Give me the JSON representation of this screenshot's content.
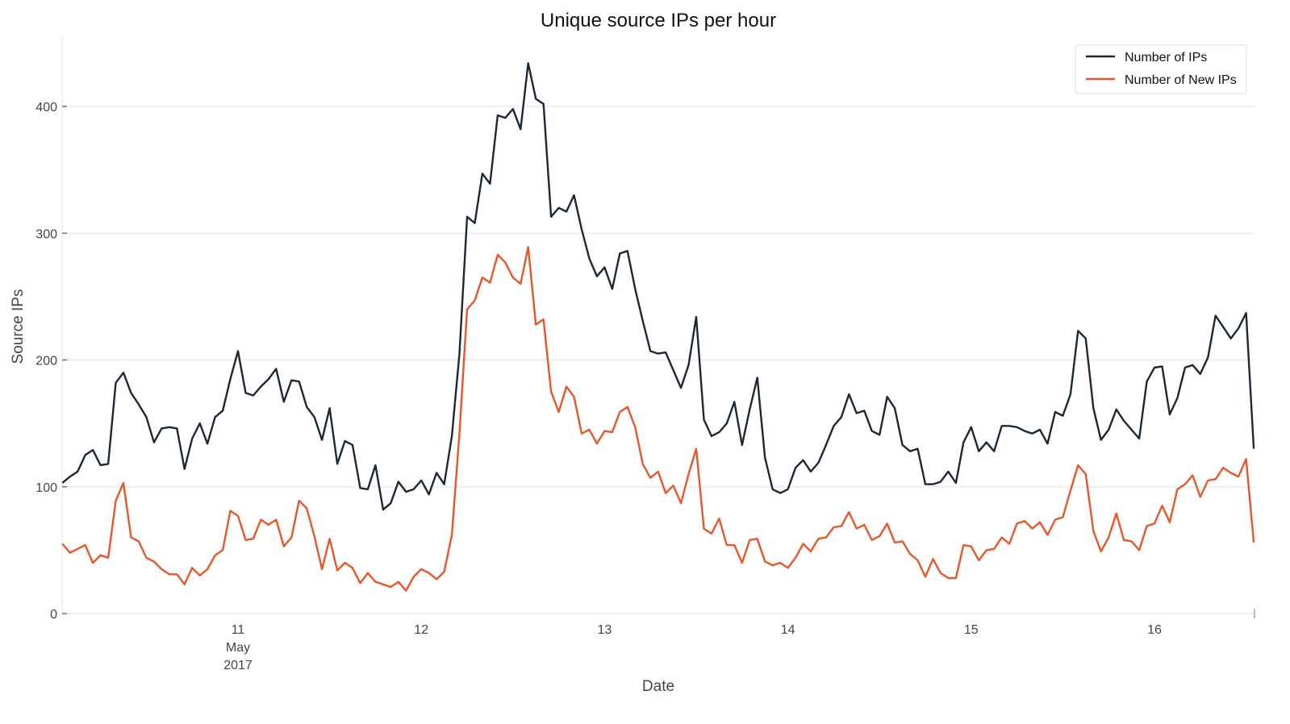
{
  "chart_data": {
    "type": "line",
    "title": "Unique source IPs per hour",
    "xlabel": "Date",
    "ylabel": "Source IPs",
    "ylim": [
      0,
      455
    ],
    "yticks": [
      0,
      100,
      200,
      300,
      400
    ],
    "xticks": [
      {
        "label": "11",
        "sub": [
          "May",
          "2017"
        ],
        "day": 11
      },
      {
        "label": "12",
        "sub": [],
        "day": 12
      },
      {
        "label": "13",
        "sub": [],
        "day": 13
      },
      {
        "label": "14",
        "sub": [],
        "day": 14
      },
      {
        "label": "15",
        "sub": [],
        "day": 15
      },
      {
        "label": "16",
        "sub": [],
        "day": 16
      }
    ],
    "x_start": "2017-05-10 01:00",
    "x_step": "1 hour",
    "grid": true,
    "legend_position": "upper right",
    "series": [
      {
        "name": "Number of IPs",
        "color": "#1c2833",
        "values": [
          103,
          108,
          112,
          125,
          129,
          117,
          118,
          182,
          190,
          174,
          165,
          155,
          135,
          146,
          147,
          146,
          114,
          138,
          150,
          134,
          155,
          160,
          185,
          207,
          174,
          172,
          179,
          185,
          193,
          167,
          184,
          183,
          163,
          155,
          137,
          162,
          118,
          136,
          133,
          99,
          98,
          117,
          82,
          87,
          104,
          96,
          98,
          105,
          94,
          111,
          102,
          140,
          205,
          313,
          308,
          347,
          339,
          393,
          391,
          398,
          382,
          434,
          406,
          402,
          313,
          320,
          317,
          330,
          303,
          280,
          266,
          273,
          256,
          284,
          286,
          256,
          231,
          207,
          205,
          206,
          192,
          178,
          196,
          234,
          153,
          140,
          143,
          150,
          167,
          133,
          161,
          186,
          123,
          98,
          95,
          98,
          115,
          121,
          112,
          119,
          133,
          148,
          155,
          173,
          158,
          160,
          144,
          141,
          171,
          162,
          133,
          128,
          130,
          102,
          102,
          104,
          112,
          103,
          135,
          147,
          128,
          135,
          128,
          148,
          148,
          147,
          144,
          142,
          145,
          134,
          159,
          156,
          173,
          223,
          217,
          162,
          137,
          145,
          161,
          152,
          145,
          138,
          183,
          194,
          195,
          157,
          170,
          194,
          196,
          189,
          202,
          235,
          226,
          217,
          225,
          237,
          130
        ]
      },
      {
        "name": "Number of New IPs",
        "color": "#e8572a",
        "values": [
          55,
          48,
          51,
          54,
          40,
          46,
          44,
          89,
          103,
          60,
          57,
          44,
          41,
          35,
          31,
          31,
          23,
          36,
          30,
          35,
          46,
          50,
          81,
          77,
          58,
          59,
          74,
          70,
          74,
          53,
          60,
          89,
          83,
          61,
          35,
          59,
          34,
          40,
          36,
          24,
          32,
          25,
          23,
          21,
          25,
          18,
          29,
          35,
          32,
          27,
          33,
          62,
          142,
          240,
          247,
          265,
          261,
          283,
          277,
          265,
          260,
          289,
          228,
          232,
          175,
          159,
          179,
          171,
          142,
          145,
          134,
          144,
          143,
          159,
          163,
          147,
          118,
          107,
          112,
          95,
          101,
          87,
          110,
          130,
          67,
          63,
          75,
          54,
          54,
          40,
          58,
          59,
          41,
          38,
          40,
          36,
          44,
          55,
          49,
          59,
          60,
          68,
          69,
          80,
          67,
          70,
          58,
          61,
          71,
          56,
          57,
          47,
          42,
          29,
          43,
          32,
          28,
          28,
          54,
          53,
          42,
          50,
          51,
          60,
          55,
          71,
          73,
          67,
          72,
          62,
          74,
          76,
          97,
          117,
          110,
          65,
          49,
          60,
          79,
          58,
          57,
          50,
          69,
          71,
          85,
          72,
          98,
          102,
          109,
          92,
          105,
          106,
          115,
          111,
          108,
          122,
          56
        ]
      }
    ]
  }
}
